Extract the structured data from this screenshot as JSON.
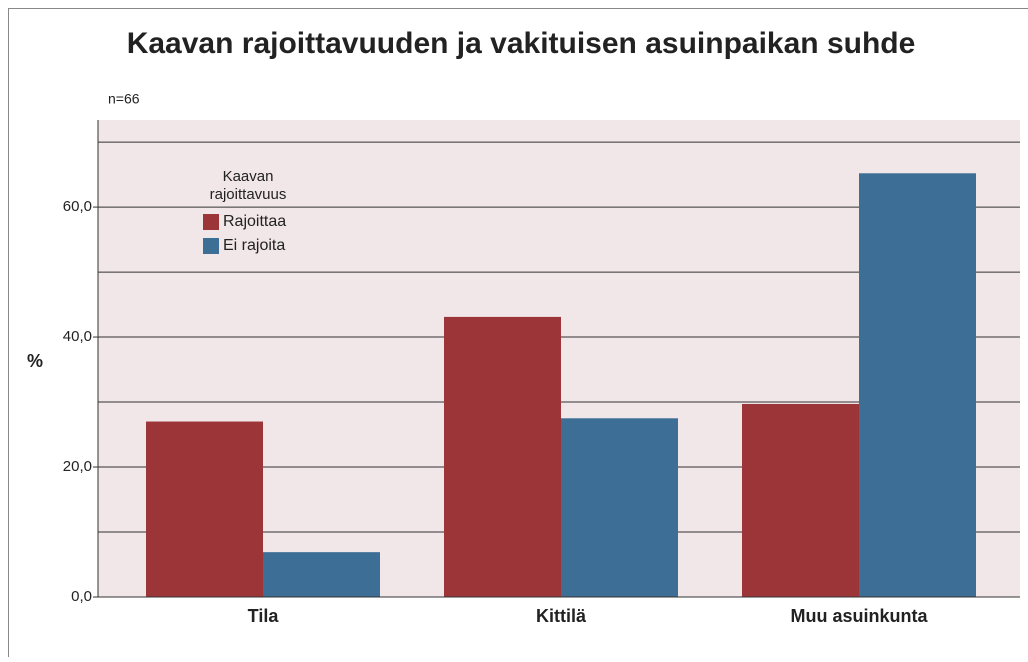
{
  "chart_data": {
    "type": "bar",
    "title": "Kaavan rajoittavuuden ja vakituisen asuinpaikan suhde",
    "subtitle": "n=66",
    "y_label": "%",
    "categories": [
      "Tila",
      "Kittilä",
      "Muu asuinkunta"
    ],
    "series": [
      {
        "name": "Rajoittaa",
        "color": "#9c3537",
        "values": [
          27.0,
          43.1,
          29.7
        ]
      },
      {
        "name": "Ei rajoita",
        "color": "#3c6e96",
        "values": [
          6.9,
          27.5,
          65.2
        ]
      }
    ],
    "legend_title": [
      "Kaavan",
      "rajoittavuus"
    ],
    "legend_position": "upper left",
    "ylim": [
      0,
      73.4
    ],
    "yticks": [
      {
        "value": 0,
        "label": "0,0"
      },
      {
        "value": 20,
        "label": "20,0"
      },
      {
        "value": 40,
        "label": "40,0"
      },
      {
        "value": 60,
        "label": "60,0"
      }
    ],
    "minor_yticks": [
      10,
      30,
      50,
      70
    ],
    "grid": true
  }
}
